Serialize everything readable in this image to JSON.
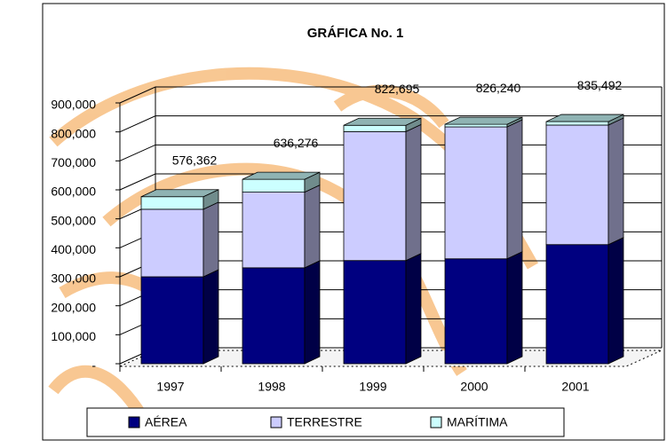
{
  "chart_data": {
    "type": "bar3d_stacked",
    "title": "GRÁFICA No. 1",
    "categories": [
      "1997",
      "1998",
      "1999",
      "2000",
      "2001"
    ],
    "series": [
      {
        "name": "AÉREA",
        "color": "#000080",
        "values": [
          300000,
          331000,
          356000,
          362000,
          411000
        ]
      },
      {
        "name": "TERRESTRE",
        "color": "#ccccff",
        "values": [
          233000,
          261000,
          445000,
          455240,
          412492
        ]
      },
      {
        "name": "MARÍTIMA",
        "color": "#ccffff",
        "values": [
          43362,
          44276,
          21695,
          9000,
          12000
        ]
      }
    ],
    "totals": [
      576362,
      636276,
      822695,
      826240,
      835492
    ],
    "totals_labels": [
      "576,362",
      "636,276",
      "822,695",
      "826,240",
      "835,492"
    ],
    "ylim": [
      0,
      900000
    ],
    "yticks": [
      {
        "value": 0,
        "label": "-"
      },
      {
        "value": 100000,
        "label": "100,000"
      },
      {
        "value": 200000,
        "label": "200,000"
      },
      {
        "value": 300000,
        "label": "300,000"
      },
      {
        "value": 400000,
        "label": "400,000"
      },
      {
        "value": 500000,
        "label": "500,000"
      },
      {
        "value": 600000,
        "label": "600,000"
      },
      {
        "value": 700000,
        "label": "700,000"
      },
      {
        "value": 800000,
        "label": "800,000"
      },
      {
        "value": 900000,
        "label": "900,000"
      }
    ],
    "grid": true
  }
}
